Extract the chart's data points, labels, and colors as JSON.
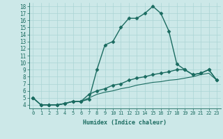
{
  "title": "",
  "xlabel": "Humidex (Indice chaleur)",
  "background_color": "#cce8e8",
  "line_color": "#1a6b60",
  "grid_color": "#aad4d4",
  "xlim": [
    -0.5,
    23.5
  ],
  "ylim": [
    3.5,
    18.5
  ],
  "xticks": [
    0,
    1,
    2,
    3,
    4,
    5,
    6,
    7,
    8,
    9,
    10,
    11,
    12,
    13,
    14,
    15,
    16,
    17,
    18,
    19,
    20,
    21,
    22,
    23
  ],
  "yticks": [
    4,
    5,
    6,
    7,
    8,
    9,
    10,
    11,
    12,
    13,
    14,
    15,
    16,
    17,
    18
  ],
  "series": [
    [
      5.0,
      4.0,
      4.0,
      4.0,
      4.2,
      4.5,
      4.5,
      4.8,
      9.0,
      12.5,
      13.0,
      15.0,
      16.3,
      16.3,
      17.0,
      18.0,
      17.0,
      14.5,
      9.8,
      9.0,
      8.3,
      8.5,
      9.0,
      7.5
    ],
    [
      5.0,
      4.0,
      4.0,
      4.0,
      4.2,
      4.5,
      4.5,
      5.5,
      6.0,
      6.3,
      6.8,
      7.0,
      7.5,
      7.8,
      8.0,
      8.3,
      8.5,
      8.7,
      9.0,
      9.0,
      8.3,
      8.5,
      9.0,
      7.5
    ],
    [
      5.0,
      4.0,
      4.0,
      4.0,
      4.2,
      4.5,
      4.5,
      5.0,
      5.5,
      5.8,
      6.0,
      6.3,
      6.5,
      6.8,
      7.0,
      7.2,
      7.3,
      7.5,
      7.6,
      7.8,
      8.0,
      8.3,
      8.5,
      7.5
    ]
  ],
  "markers": [
    "D",
    "D",
    null
  ],
  "marker_sizes": [
    2.5,
    2.5,
    0
  ],
  "linewidths": [
    1.0,
    1.0,
    0.8
  ],
  "font_size_x": 5.0,
  "font_size_y": 5.5,
  "font_size_xlabel": 6.0
}
